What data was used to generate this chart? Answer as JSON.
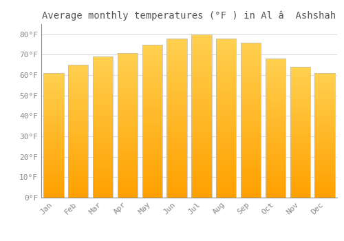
{
  "title": "Average monthly temperatures (°F ) in Al â  Ashshah",
  "months": [
    "Jan",
    "Feb",
    "Mar",
    "Apr",
    "May",
    "Jun",
    "Jul",
    "Aug",
    "Sep",
    "Oct",
    "Nov",
    "Dec"
  ],
  "values": [
    61,
    65,
    69,
    71,
    75,
    78,
    80,
    78,
    76,
    68,
    64,
    61
  ],
  "bar_color_light": "#FFD060",
  "bar_color_dark": "#FFA000",
  "bar_edge_color": "#BBBBBB",
  "background_color": "#FFFFFF",
  "grid_color": "#DDDDDD",
  "ylabel_ticks": [
    0,
    10,
    20,
    30,
    40,
    50,
    60,
    70,
    80
  ],
  "ylim": [
    0,
    85
  ],
  "tick_label_color": "#888888",
  "title_color": "#555555",
  "title_fontsize": 10,
  "tick_fontsize": 8,
  "bar_width": 0.82
}
